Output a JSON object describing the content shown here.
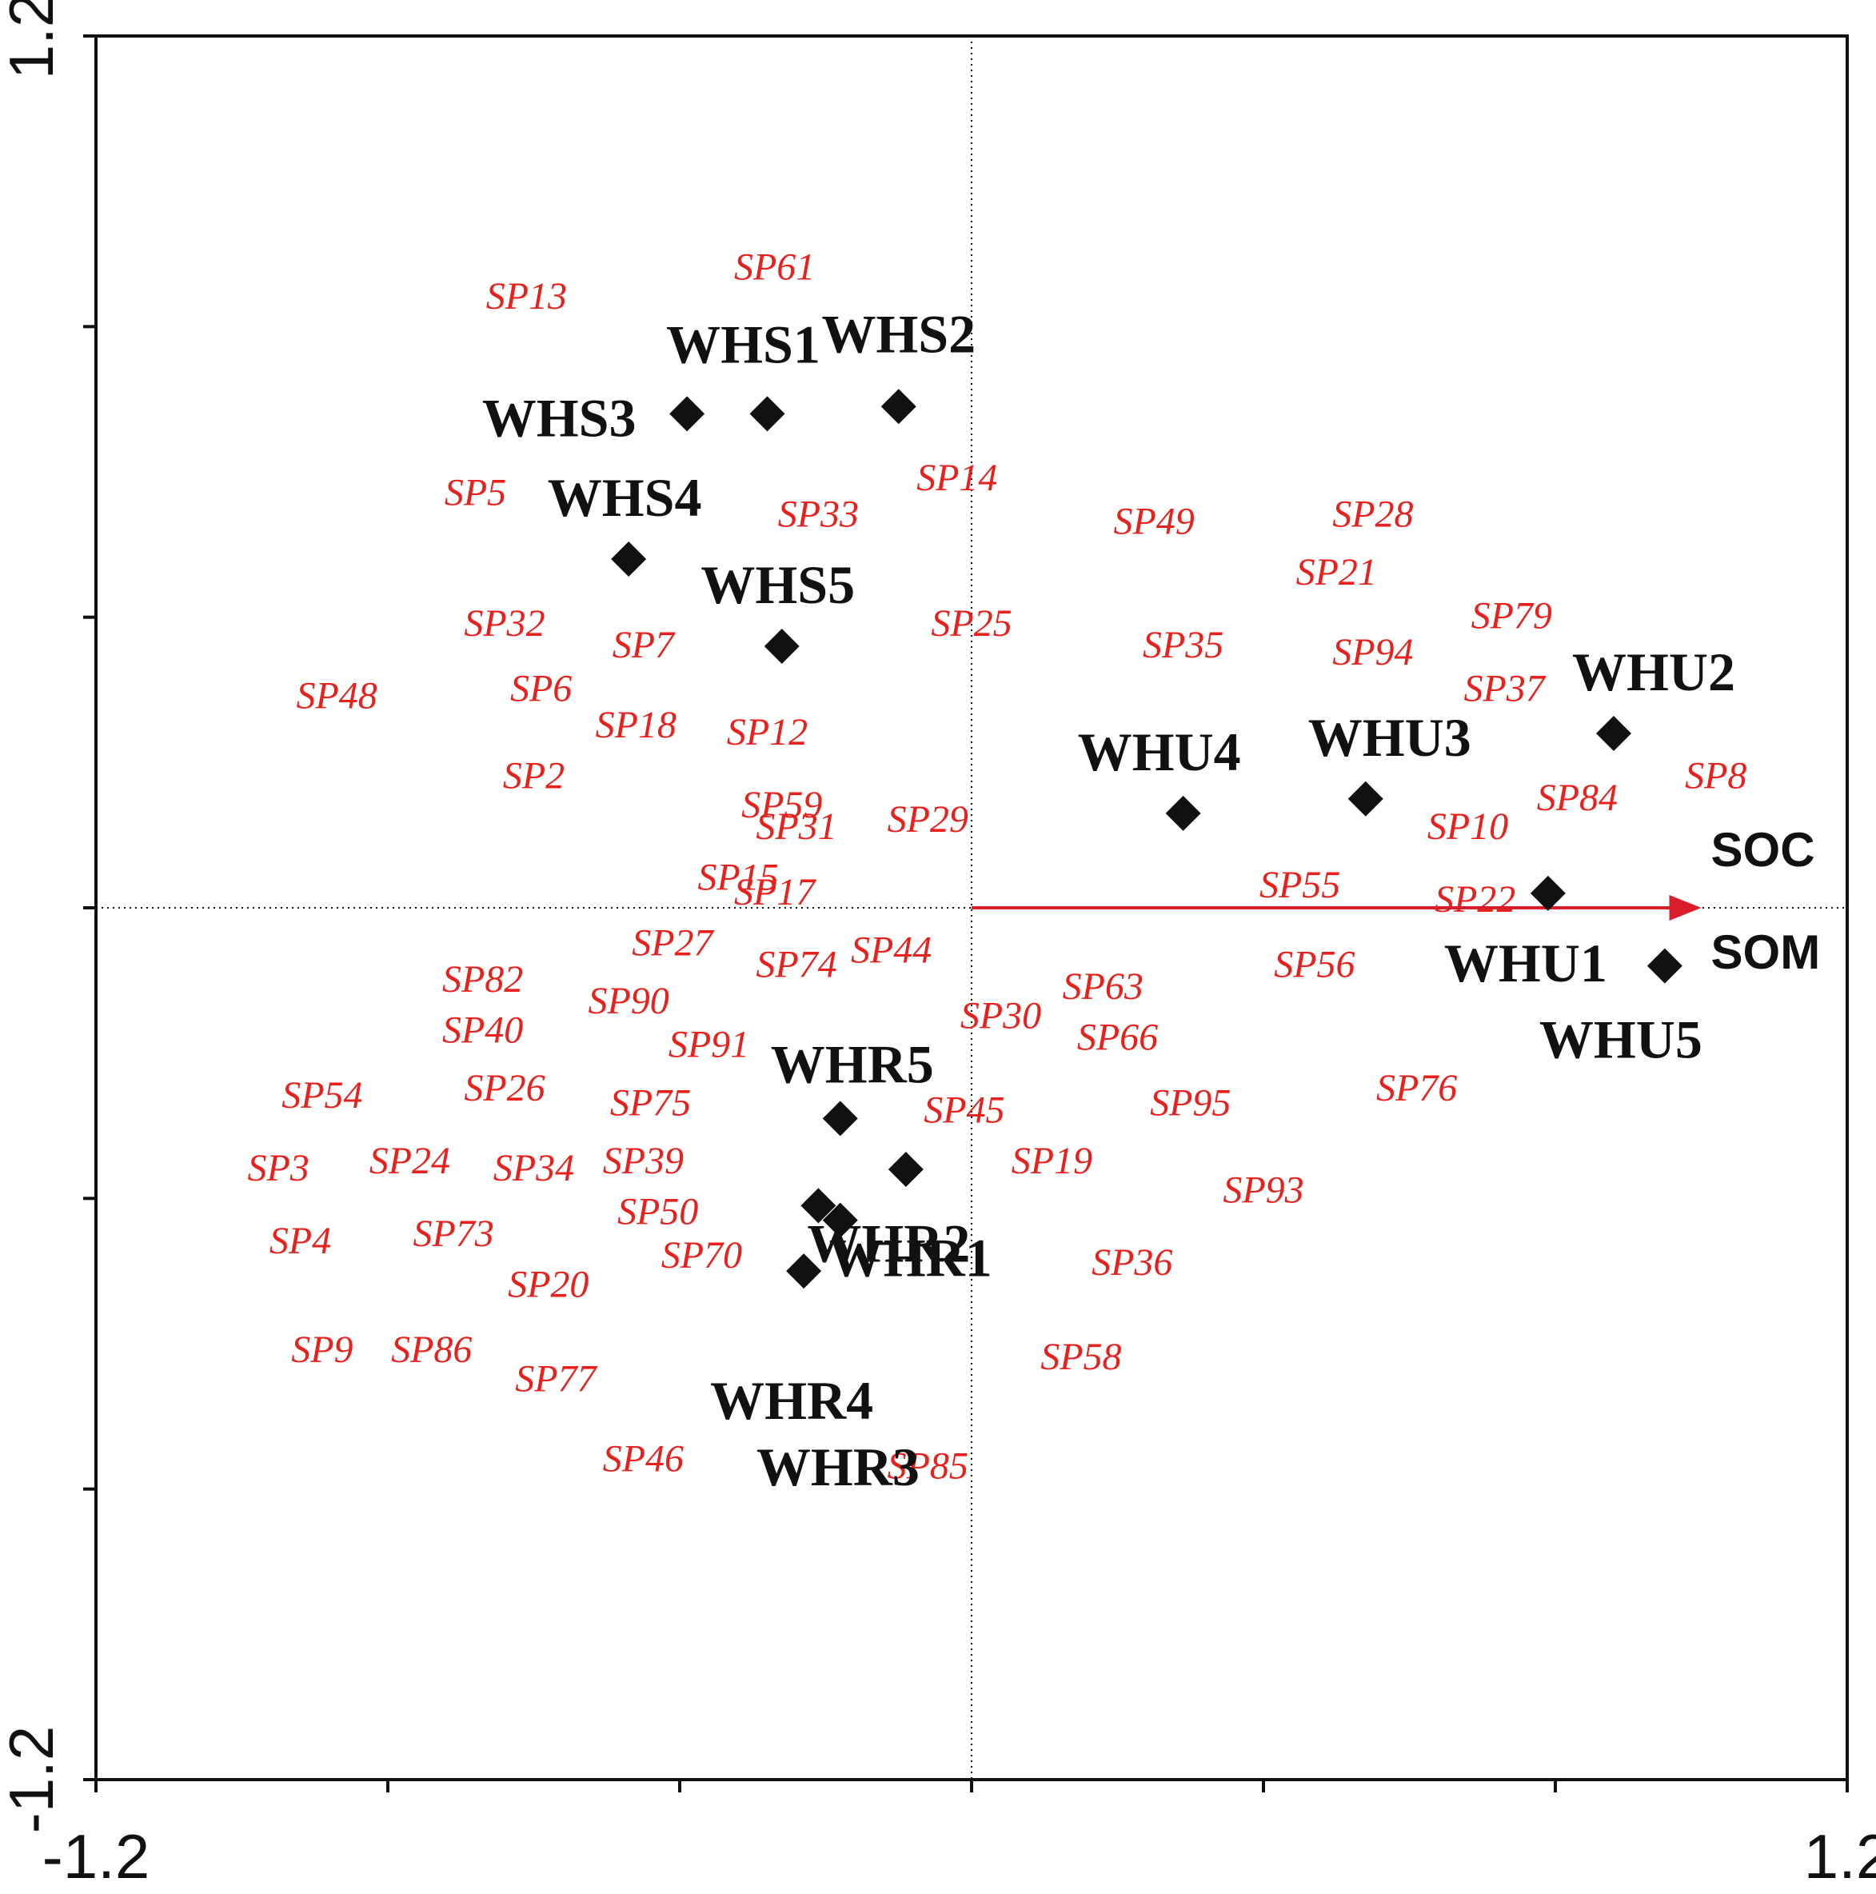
{
  "colors": {
    "species": "#e8211d",
    "samples": "#111111",
    "arrow": "#d81e2a",
    "axes": "#111111"
  },
  "chart_data": {
    "type": "scatter",
    "title": "",
    "xlabel": "",
    "ylabel": "",
    "xlim": [
      -1.2,
      1.2
    ],
    "ylim": [
      -1.2,
      1.2
    ],
    "x_tick_labels": [
      "-1.2",
      "1.2"
    ],
    "y_tick_labels": [
      "1.2",
      "-1.2"
    ],
    "grid": false,
    "zero_lines": "dotted",
    "samples": [
      {
        "name": "WHS1",
        "x": -0.28,
        "y": 0.68
      },
      {
        "name": "WHS2",
        "x": -0.1,
        "y": 0.69
      },
      {
        "name": "WHS3",
        "x": -0.39,
        "y": 0.68
      },
      {
        "name": "WHS4",
        "x": -0.47,
        "y": 0.48
      },
      {
        "name": "WHS5",
        "x": -0.26,
        "y": 0.36
      },
      {
        "name": "WHU1",
        "x": 0.79,
        "y": 0.02
      },
      {
        "name": "WHU2",
        "x": 0.88,
        "y": 0.24
      },
      {
        "name": "WHU3",
        "x": 0.54,
        "y": 0.15
      },
      {
        "name": "WHU4",
        "x": 0.29,
        "y": 0.13
      },
      {
        "name": "WHU5",
        "x": 0.95,
        "y": -0.08
      },
      {
        "name": "WHR1",
        "x": -0.18,
        "y": -0.43
      },
      {
        "name": "WHR2",
        "x": -0.21,
        "y": -0.41
      },
      {
        "name": "WHR3",
        "x": -0.09,
        "y": -0.36
      },
      {
        "name": "WHR4",
        "x": -0.23,
        "y": -0.5
      },
      {
        "name": "WHR5",
        "x": -0.18,
        "y": -0.29
      }
    ],
    "species": [
      {
        "name": "SP2",
        "x": -0.6,
        "y": 0.18
      },
      {
        "name": "SP3",
        "x": -0.95,
        "y": -0.36
      },
      {
        "name": "SP4",
        "x": -0.92,
        "y": -0.46
      },
      {
        "name": "SP5",
        "x": -0.68,
        "y": 0.57
      },
      {
        "name": "SP6",
        "x": -0.59,
        "y": 0.3
      },
      {
        "name": "SP7",
        "x": -0.45,
        "y": 0.36
      },
      {
        "name": "SP8",
        "x": 1.02,
        "y": 0.18
      },
      {
        "name": "SP9",
        "x": -0.89,
        "y": -0.61
      },
      {
        "name": "SP10",
        "x": 0.68,
        "y": 0.11
      },
      {
        "name": "SP12",
        "x": -0.28,
        "y": 0.24
      },
      {
        "name": "SP13",
        "x": -0.61,
        "y": 0.84
      },
      {
        "name": "SP14",
        "x": -0.02,
        "y": 0.59
      },
      {
        "name": "SP15",
        "x": -0.32,
        "y": 0.04
      },
      {
        "name": "SP17",
        "x": -0.27,
        "y": 0.02
      },
      {
        "name": "SP18",
        "x": -0.46,
        "y": 0.25
      },
      {
        "name": "SP19",
        "x": 0.11,
        "y": -0.35
      },
      {
        "name": "SP20",
        "x": -0.58,
        "y": -0.52
      },
      {
        "name": "SP21",
        "x": 0.5,
        "y": 0.46
      },
      {
        "name": "SP22",
        "x": 0.69,
        "y": 0.01
      },
      {
        "name": "SP24",
        "x": -0.77,
        "y": -0.35
      },
      {
        "name": "SP25",
        "x": 0.0,
        "y": 0.39
      },
      {
        "name": "SP26",
        "x": -0.64,
        "y": -0.25
      },
      {
        "name": "SP27",
        "x": -0.41,
        "y": -0.05
      },
      {
        "name": "SP28",
        "x": 0.55,
        "y": 0.54
      },
      {
        "name": "SP29",
        "x": -0.06,
        "y": 0.12
      },
      {
        "name": "SP30",
        "x": 0.04,
        "y": -0.15
      },
      {
        "name": "SP31",
        "x": -0.24,
        "y": 0.11
      },
      {
        "name": "SP32",
        "x": -0.64,
        "y": 0.39
      },
      {
        "name": "SP33",
        "x": -0.21,
        "y": 0.54
      },
      {
        "name": "SP34",
        "x": -0.6,
        "y": -0.36
      },
      {
        "name": "SP35",
        "x": 0.29,
        "y": 0.36
      },
      {
        "name": "SP36",
        "x": 0.22,
        "y": -0.49
      },
      {
        "name": "SP37",
        "x": 0.73,
        "y": 0.3
      },
      {
        "name": "SP39",
        "x": -0.45,
        "y": -0.35
      },
      {
        "name": "SP40",
        "x": -0.67,
        "y": -0.17
      },
      {
        "name": "SP44",
        "x": -0.11,
        "y": -0.06
      },
      {
        "name": "SP45",
        "x": -0.01,
        "y": -0.28
      },
      {
        "name": "SP46",
        "x": -0.45,
        "y": -0.76
      },
      {
        "name": "SP48",
        "x": -0.87,
        "y": 0.29
      },
      {
        "name": "SP49",
        "x": 0.25,
        "y": 0.53
      },
      {
        "name": "SP50",
        "x": -0.43,
        "y": -0.42
      },
      {
        "name": "SP54",
        "x": -0.89,
        "y": -0.26
      },
      {
        "name": "SP55",
        "x": 0.45,
        "y": 0.03
      },
      {
        "name": "SP56",
        "x": 0.47,
        "y": -0.08
      },
      {
        "name": "SP58",
        "x": 0.15,
        "y": -0.62
      },
      {
        "name": "SP59",
        "x": -0.26,
        "y": 0.14
      },
      {
        "name": "SP61",
        "x": -0.27,
        "y": 0.88
      },
      {
        "name": "SP63",
        "x": 0.18,
        "y": -0.11
      },
      {
        "name": "SP66",
        "x": 0.2,
        "y": -0.18
      },
      {
        "name": "SP70",
        "x": -0.37,
        "y": -0.48
      },
      {
        "name": "SP73",
        "x": -0.71,
        "y": -0.45
      },
      {
        "name": "SP74",
        "x": -0.24,
        "y": -0.08
      },
      {
        "name": "SP75",
        "x": -0.44,
        "y": -0.27
      },
      {
        "name": "SP76",
        "x": 0.61,
        "y": -0.25
      },
      {
        "name": "SP77",
        "x": -0.57,
        "y": -0.65
      },
      {
        "name": "SP79",
        "x": 0.74,
        "y": 0.4
      },
      {
        "name": "SP82",
        "x": -0.67,
        "y": -0.1
      },
      {
        "name": "SP84",
        "x": 0.83,
        "y": 0.15
      },
      {
        "name": "SP85",
        "x": -0.06,
        "y": -0.77
      },
      {
        "name": "SP86",
        "x": -0.74,
        "y": -0.61
      },
      {
        "name": "SP90",
        "x": -0.47,
        "y": -0.13
      },
      {
        "name": "SP91",
        "x": -0.36,
        "y": -0.19
      },
      {
        "name": "SP93",
        "x": 0.4,
        "y": -0.39
      },
      {
        "name": "SP94",
        "x": 0.55,
        "y": 0.35
      },
      {
        "name": "SP95",
        "x": 0.3,
        "y": -0.27
      }
    ],
    "env_vectors": [
      {
        "name": "SOC",
        "x": 1.0,
        "y": 0.0
      },
      {
        "name": "SOM",
        "x": 1.0,
        "y": 0.0
      }
    ]
  }
}
